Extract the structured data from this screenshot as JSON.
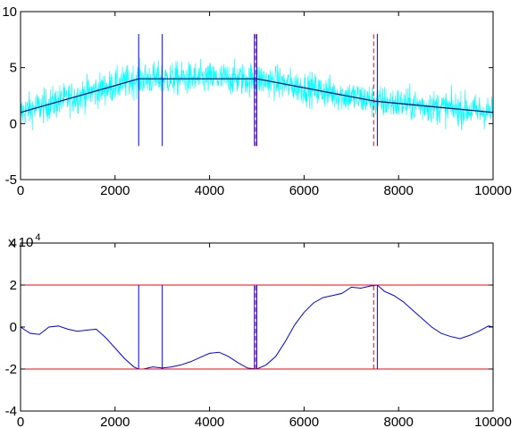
{
  "colors": {
    "noise": "#00ffff",
    "trend": "#000080",
    "stat": "#0000ff",
    "detected": "#0000ff",
    "truth": "#ff0000",
    "threshold": "#ff0000"
  },
  "chart_data": [
    {
      "type": "line",
      "xlim": [
        0,
        10000
      ],
      "ylim": [
        -5,
        10
      ],
      "xticks": [
        "0",
        "2000",
        "4000",
        "6000",
        "8000",
        "10000"
      ],
      "yticks": [
        "-5",
        "0",
        "5",
        "10"
      ],
      "series": [
        {
          "style": "noisy signal (cyan)",
          "x": [
            0,
            2500,
            5000,
            7500,
            10000
          ],
          "mean": [
            1,
            4,
            4,
            2,
            1
          ],
          "noise_amplitude": 1.6
        },
        {
          "style": "piecewise linear trend (dark blue)",
          "x": [
            0,
            2500,
            5000,
            7500,
            10000
          ],
          "y": [
            1,
            4,
            4,
            2,
            1
          ]
        }
      ],
      "detected_changepoints": {
        "x": [
          2500,
          3000,
          4950,
          5000,
          7550
        ],
        "ymin": -2,
        "ymax": 8
      },
      "true_changepoints": {
        "x": [
          5000,
          7500
        ],
        "ymin": -2,
        "ymax": 8
      }
    },
    {
      "type": "line",
      "xlim": [
        0,
        10000
      ],
      "ylim": [
        -4,
        4
      ],
      "multiplier_label": "x 10",
      "multiplier_exponent": "4",
      "xticks": [
        "0",
        "2000",
        "4000",
        "6000",
        "8000",
        "10000"
      ],
      "yticks": [
        "-4",
        "-2",
        "0",
        "2",
        "4"
      ],
      "thresholds": [
        2,
        -2
      ],
      "series": [
        {
          "style": "statistic (blue)",
          "x": [
            0,
            200,
            400,
            600,
            800,
            1000,
            1200,
            1400,
            1600,
            1800,
            2000,
            2200,
            2400,
            2500,
            2600,
            2800,
            3000,
            3200,
            3400,
            3600,
            3800,
            4000,
            4200,
            4400,
            4600,
            4800,
            5000,
            5200,
            5400,
            5600,
            5800,
            6000,
            6200,
            6400,
            6600,
            6800,
            7000,
            7200,
            7400,
            7550,
            7700,
            7900,
            8100,
            8300,
            8500,
            8700,
            8900,
            9100,
            9300,
            9500,
            9700,
            9900,
            10000
          ],
          "y": [
            0,
            -0.3,
            -0.35,
            0,
            0.05,
            -0.1,
            -0.2,
            -0.15,
            -0.1,
            -0.5,
            -1.0,
            -1.5,
            -1.9,
            -2.0,
            -2.0,
            -1.9,
            -1.95,
            -1.9,
            -1.8,
            -1.65,
            -1.45,
            -1.25,
            -1.2,
            -1.4,
            -1.7,
            -1.95,
            -2.0,
            -1.8,
            -1.4,
            -0.7,
            0.1,
            0.7,
            1.15,
            1.4,
            1.5,
            1.6,
            1.9,
            1.85,
            1.95,
            2.0,
            1.7,
            1.5,
            1.2,
            0.8,
            0.4,
            0.0,
            -0.3,
            -0.45,
            -0.55,
            -0.4,
            -0.2,
            0.05,
            0.0
          ]
        }
      ],
      "detected_changepoints": {
        "x": [
          2500,
          3000,
          4950,
          5000,
          7550
        ],
        "ymin": -2,
        "ymax": 2
      },
      "true_changepoints": {
        "x": [
          5000,
          7500
        ],
        "ymin": -2,
        "ymax": 2
      }
    }
  ]
}
